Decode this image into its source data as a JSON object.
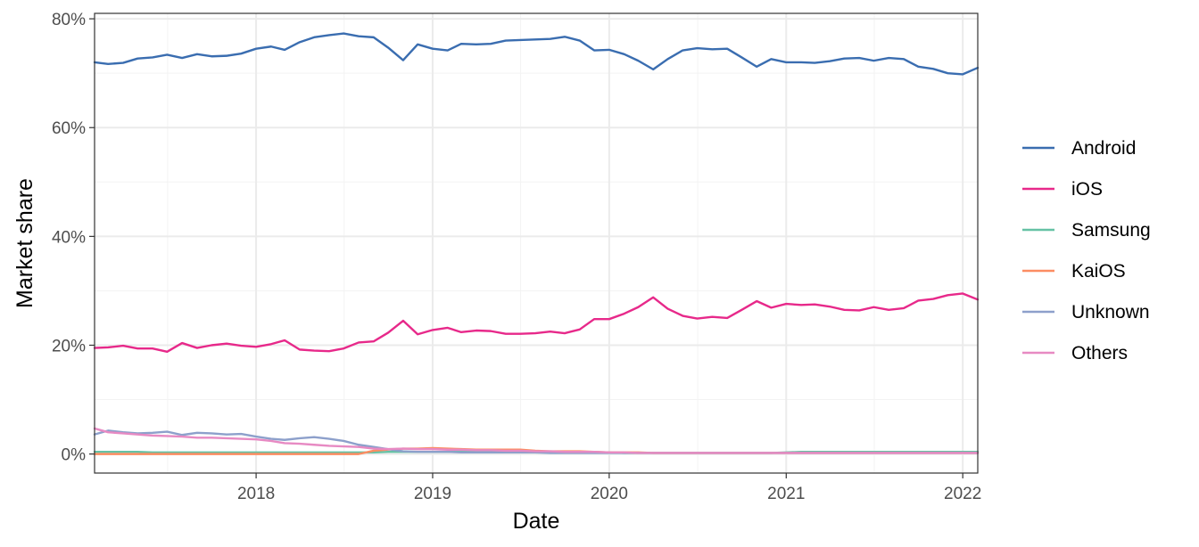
{
  "chart_data": {
    "type": "line",
    "title": "",
    "xlabel": "Date",
    "ylabel": "Market share",
    "x_type": "date",
    "xlim": [
      "2017-02-01",
      "2022-02-01"
    ],
    "ylim": [
      -0.035,
      0.81
    ],
    "y_format": "percent",
    "y_ticks": [
      0,
      0.2,
      0.4,
      0.6,
      0.8
    ],
    "y_tick_labels": [
      "0%",
      "20%",
      "40%",
      "60%",
      "80%"
    ],
    "x_ticks": [
      "2018-01-01",
      "2019-01-01",
      "2020-01-01",
      "2021-01-01",
      "2022-01-01"
    ],
    "x_tick_labels": [
      "2018",
      "2019",
      "2020",
      "2021",
      "2022"
    ],
    "grid": true,
    "legend_position": "right",
    "x": [
      "2017-02-01",
      "2017-03-01",
      "2017-04-01",
      "2017-05-01",
      "2017-06-01",
      "2017-07-01",
      "2017-08-01",
      "2017-09-01",
      "2017-10-01",
      "2017-11-01",
      "2017-12-01",
      "2018-01-01",
      "2018-02-01",
      "2018-03-01",
      "2018-04-01",
      "2018-05-01",
      "2018-06-01",
      "2018-07-01",
      "2018-08-01",
      "2018-09-01",
      "2018-10-01",
      "2018-11-01",
      "2018-12-01",
      "2019-01-01",
      "2019-02-01",
      "2019-03-01",
      "2019-04-01",
      "2019-05-01",
      "2019-06-01",
      "2019-07-01",
      "2019-08-01",
      "2019-09-01",
      "2019-10-01",
      "2019-11-01",
      "2019-12-01",
      "2020-01-01",
      "2020-02-01",
      "2020-03-01",
      "2020-04-01",
      "2020-05-01",
      "2020-06-01",
      "2020-07-01",
      "2020-08-01",
      "2020-09-01",
      "2020-10-01",
      "2020-11-01",
      "2020-12-01",
      "2021-01-01",
      "2021-02-01",
      "2021-03-01",
      "2021-04-01",
      "2021-05-01",
      "2021-06-01",
      "2021-07-01",
      "2021-08-01",
      "2021-09-01",
      "2021-10-01",
      "2021-11-01",
      "2021-12-01",
      "2022-01-01",
      "2022-02-01"
    ],
    "series": [
      {
        "name": "Android",
        "color": "#3a6db0",
        "values": [
          0.72,
          0.717,
          0.719,
          0.727,
          0.729,
          0.734,
          0.728,
          0.735,
          0.731,
          0.732,
          0.736,
          0.745,
          0.749,
          0.743,
          0.757,
          0.766,
          0.77,
          0.773,
          0.768,
          0.766,
          0.747,
          0.724,
          0.753,
          0.745,
          0.742,
          0.754,
          0.753,
          0.754,
          0.76,
          0.761,
          0.762,
          0.763,
          0.767,
          0.76,
          0.742,
          0.743,
          0.735,
          0.723,
          0.707,
          0.726,
          0.742,
          0.746,
          0.744,
          0.745,
          0.729,
          0.712,
          0.726,
          0.72,
          0.72,
          0.719,
          0.722,
          0.727,
          0.728,
          0.723,
          0.728,
          0.726,
          0.712,
          0.708,
          0.7,
          0.698,
          0.71
        ]
      },
      {
        "name": "iOS",
        "color": "#e7298a",
        "values": [
          0.195,
          0.196,
          0.199,
          0.194,
          0.194,
          0.188,
          0.204,
          0.195,
          0.2,
          0.203,
          0.199,
          0.197,
          0.202,
          0.209,
          0.192,
          0.19,
          0.189,
          0.194,
          0.205,
          0.207,
          0.223,
          0.245,
          0.22,
          0.228,
          0.232,
          0.224,
          0.227,
          0.226,
          0.221,
          0.221,
          0.222,
          0.225,
          0.222,
          0.229,
          0.248,
          0.248,
          0.258,
          0.27,
          0.288,
          0.267,
          0.254,
          0.249,
          0.252,
          0.25,
          0.265,
          0.281,
          0.269,
          0.276,
          0.274,
          0.275,
          0.271,
          0.265,
          0.264,
          0.27,
          0.265,
          0.268,
          0.282,
          0.285,
          0.292,
          0.295,
          0.284
        ]
      },
      {
        "name": "Samsung",
        "color": "#66c2a5",
        "values": [
          0.004,
          0.004,
          0.004,
          0.004,
          0.003,
          0.003,
          0.003,
          0.003,
          0.003,
          0.003,
          0.003,
          0.003,
          0.003,
          0.003,
          0.003,
          0.003,
          0.003,
          0.003,
          0.003,
          0.003,
          0.004,
          0.004,
          0.004,
          0.004,
          0.004,
          0.004,
          0.004,
          0.004,
          0.003,
          0.003,
          0.003,
          0.003,
          0.003,
          0.003,
          0.003,
          0.003,
          0.002,
          0.002,
          0.002,
          0.002,
          0.002,
          0.002,
          0.002,
          0.002,
          0.002,
          0.002,
          0.002,
          0.003,
          0.004,
          0.004,
          0.004,
          0.004,
          0.004,
          0.004,
          0.004,
          0.004,
          0.004,
          0.004,
          0.004,
          0.004,
          0.004
        ]
      },
      {
        "name": "KaiOS",
        "color": "#fc8d62",
        "values": [
          0.0,
          0.0,
          0.0,
          0.0,
          0.0,
          0.0,
          0.0,
          0.0,
          0.0,
          0.0,
          0.0,
          0.0,
          0.0,
          0.0,
          0.0,
          0.0,
          0.0,
          0.0,
          0.0,
          0.006,
          0.008,
          0.01,
          0.01,
          0.011,
          0.01,
          0.009,
          0.008,
          0.008,
          0.008,
          0.008,
          0.006,
          0.005,
          0.005,
          0.005,
          0.004,
          0.003,
          0.003,
          0.003,
          0.002,
          0.002,
          0.002,
          0.002,
          0.002,
          0.002,
          0.002,
          0.002,
          0.002,
          0.002,
          0.002,
          0.002,
          0.002,
          0.002,
          0.002,
          0.002,
          0.002,
          0.002,
          0.002,
          0.002,
          0.002,
          0.002,
          0.002
        ]
      },
      {
        "name": "Unknown",
        "color": "#8da0cb",
        "values": [
          0.036,
          0.043,
          0.04,
          0.038,
          0.039,
          0.041,
          0.035,
          0.039,
          0.038,
          0.036,
          0.037,
          0.032,
          0.028,
          0.026,
          0.029,
          0.031,
          0.028,
          0.024,
          0.017,
          0.013,
          0.009,
          0.005,
          0.004,
          0.004,
          0.004,
          0.003,
          0.003,
          0.003,
          0.003,
          0.003,
          0.003,
          0.002,
          0.002,
          0.002,
          0.002,
          0.002,
          0.002,
          0.002,
          0.002,
          0.002,
          0.002,
          0.002,
          0.002,
          0.002,
          0.002,
          0.002,
          0.002,
          0.002,
          0.002,
          0.002,
          0.002,
          0.002,
          0.002,
          0.002,
          0.002,
          0.002,
          0.002,
          0.002,
          0.002,
          0.002,
          0.002
        ]
      },
      {
        "name": "Others",
        "color": "#e78ac3",
        "values": [
          0.047,
          0.04,
          0.038,
          0.036,
          0.034,
          0.033,
          0.032,
          0.03,
          0.03,
          0.029,
          0.028,
          0.027,
          0.024,
          0.02,
          0.019,
          0.017,
          0.015,
          0.014,
          0.013,
          0.01,
          0.009,
          0.01,
          0.009,
          0.009,
          0.008,
          0.008,
          0.007,
          0.007,
          0.006,
          0.006,
          0.005,
          0.005,
          0.004,
          0.004,
          0.004,
          0.003,
          0.003,
          0.002,
          0.002,
          0.002,
          0.002,
          0.002,
          0.002,
          0.002,
          0.002,
          0.002,
          0.002,
          0.002,
          0.002,
          0.002,
          0.002,
          0.002,
          0.002,
          0.002,
          0.002,
          0.002,
          0.002,
          0.002,
          0.002,
          0.002,
          0.002
        ]
      }
    ]
  }
}
